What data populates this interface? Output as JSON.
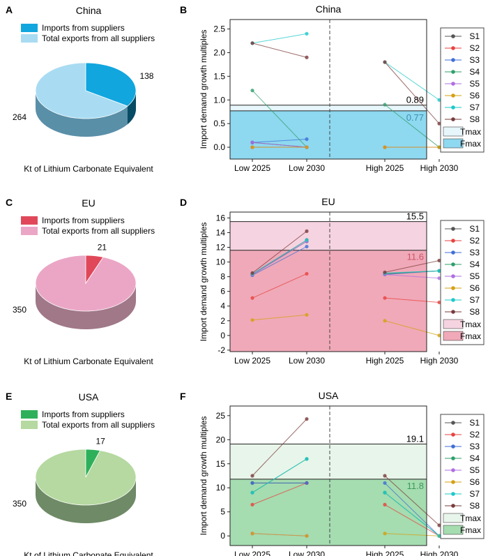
{
  "legend_series": [
    "S1",
    "S2",
    "S3",
    "S4",
    "S5",
    "S6",
    "S7",
    "S8"
  ],
  "series_colors": [
    "#555555",
    "#e8423f",
    "#3f6fd6",
    "#2f9f6a",
    "#b06ee0",
    "#d4a012",
    "#1ec8c8",
    "#7a3b3b"
  ],
  "xcats": [
    "Low 2025",
    "Low 2030",
    "High 2025",
    "High 2030"
  ],
  "ylabel": "Import demand growth multiples",
  "tmax_label": "Tmax",
  "fmax_label": "Fmax",
  "pie_units": "Kt of Lithium Carbonate Equivalent",
  "pie_legend": [
    "Imports from suppliers",
    "Total exports from all suppliers"
  ],
  "panels": [
    {
      "pie_letter": "A",
      "line_letter": "B",
      "title": "China",
      "pie": {
        "imports": 138,
        "total": 264,
        "imports_label": "138",
        "total_label": "264",
        "imports_color": "#12a6de",
        "total_color": "#a9dcf2",
        "side_color": "#5a8fa8"
      },
      "chart_data": {
        "type": "line",
        "title": "China",
        "ylim": [
          -0.25,
          2.7
        ],
        "yticks": [
          0.0,
          0.5,
          1.0,
          1.5,
          2.0,
          2.5
        ],
        "tmax": 0.89,
        "fmax": 0.77,
        "tmax_label": "0.89",
        "fmax_label": "0.77",
        "tmax_fill": "#e6f6fb",
        "fmax_fill": "#8ed8f0",
        "fmax_text": "#3a8fb0",
        "series": [
          {
            "name": "S1",
            "values": [
              0.1,
              0.0,
              null,
              null
            ]
          },
          {
            "name": "S2",
            "values": [
              0.0,
              0.0,
              0.0,
              0.0
            ]
          },
          {
            "name": "S3",
            "values": [
              0.1,
              0.17,
              null,
              null
            ]
          },
          {
            "name": "S4",
            "values": [
              1.2,
              0.0,
              0.9,
              0.0
            ]
          },
          {
            "name": "S5",
            "values": [
              0.1,
              0.0,
              null,
              null
            ]
          },
          {
            "name": "S6",
            "values": [
              0.0,
              0.0,
              0.0,
              0.0
            ]
          },
          {
            "name": "S7",
            "values": [
              2.2,
              2.4,
              1.8,
              1.0
            ]
          },
          {
            "name": "S8",
            "values": [
              2.2,
              1.9,
              1.8,
              0.5
            ]
          }
        ]
      }
    },
    {
      "pie_letter": "C",
      "line_letter": "D",
      "title": "EU",
      "pie": {
        "imports": 21,
        "total": 350,
        "imports_label": "21",
        "total_label": "350",
        "imports_color": "#e0485a",
        "total_color": "#eba6c6",
        "side_color": "#a07888"
      },
      "chart_data": {
        "type": "line",
        "title": "EU",
        "ylim": [
          -2.2,
          16.8
        ],
        "yticks": [
          -2,
          0,
          2,
          4,
          6,
          8,
          10,
          12,
          14,
          16
        ],
        "tmax": 15.5,
        "fmax": 11.6,
        "tmax_label": "15.5",
        "fmax_label": "11.6",
        "tmax_fill": "#f6d3e0",
        "fmax_fill": "#f0a9b8",
        "fmax_text": "#cc5566",
        "series": [
          {
            "name": "S1",
            "values": [
              8.3,
              13.0,
              8.4,
              8.8
            ]
          },
          {
            "name": "S2",
            "values": [
              5.1,
              8.4,
              5.1,
              4.5
            ]
          },
          {
            "name": "S3",
            "values": [
              8.2,
              12.1,
              8.3,
              8.8
            ]
          },
          {
            "name": "S4",
            "values": [
              8.3,
              12.8,
              8.4,
              8.8
            ]
          },
          {
            "name": "S5",
            "values": [
              8.3,
              12.8,
              8.3,
              7.8
            ]
          },
          {
            "name": "S6",
            "values": [
              2.1,
              2.8,
              2.0,
              0.0
            ]
          },
          {
            "name": "S7",
            "values": [
              8.4,
              13.0,
              8.5,
              8.8
            ]
          },
          {
            "name": "S8",
            "values": [
              8.5,
              14.2,
              8.6,
              10.2
            ]
          }
        ]
      }
    },
    {
      "pie_letter": "E",
      "line_letter": "F",
      "title": "USA",
      "pie": {
        "imports": 17,
        "total": 350,
        "imports_label": "17",
        "total_label": "350",
        "imports_color": "#2eb05a",
        "total_color": "#b5d9a0",
        "side_color": "#6f8a66"
      },
      "chart_data": {
        "type": "line",
        "title": "USA",
        "ylim": [
          -2,
          27
        ],
        "yticks": [
          0,
          5,
          10,
          15,
          20,
          25
        ],
        "tmax": 19.1,
        "fmax": 11.8,
        "tmax_label": "19.1",
        "fmax_label": "11.8",
        "tmax_fill": "#e8f5ea",
        "fmax_fill": "#a5dcb0",
        "fmax_text": "#3c9a5a",
        "series": [
          {
            "name": "S1",
            "values": [
              11.0,
              11.0,
              null,
              null
            ]
          },
          {
            "name": "S2",
            "values": [
              6.5,
              11.0,
              6.5,
              0.0
            ]
          },
          {
            "name": "S3",
            "values": [
              11.0,
              11.0,
              11.0,
              0.0
            ]
          },
          {
            "name": "S4",
            "values": [
              9.0,
              16.0,
              9.0,
              0.0
            ]
          },
          {
            "name": "S5",
            "values": [
              0.5,
              0.0,
              null,
              null
            ]
          },
          {
            "name": "S6",
            "values": [
              0.5,
              0.0,
              0.5,
              0.0
            ]
          },
          {
            "name": "S7",
            "values": [
              9.0,
              16.0,
              9.0,
              0.0
            ]
          },
          {
            "name": "S8",
            "values": [
              12.5,
              24.3,
              12.5,
              2.2
            ]
          }
        ]
      }
    }
  ]
}
